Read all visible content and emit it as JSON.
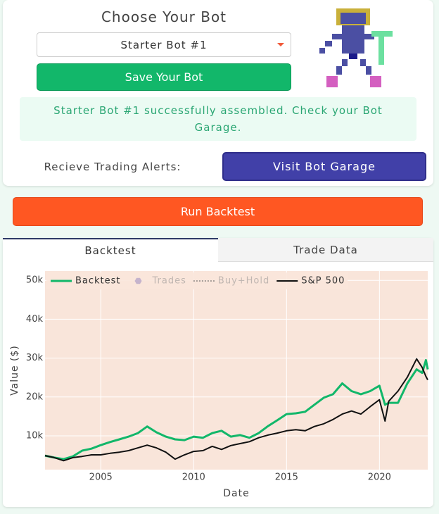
{
  "header": {
    "title": "Choose Your Bot"
  },
  "bot_select": {
    "value": "Starter Bot #1"
  },
  "buttons": {
    "save": "Save Your Bot",
    "garage": "Visit Bot Garage",
    "run": "Run Backtest"
  },
  "message": "Starter Bot #1 successfully assembled. Check your Bot Garage.",
  "alerts_label": "Recieve Trading Alerts:",
  "tabs": [
    "Backtest",
    "Trade Data"
  ],
  "chart_data": {
    "type": "line",
    "xlabel": "Date",
    "ylabel": "Value ($)",
    "xlim": [
      2002,
      2022.6
    ],
    "ylim": [
      1300,
      52400
    ],
    "xticks": [
      2005,
      2010,
      2015,
      2020
    ],
    "yticks": [
      {
        "value": 10000,
        "label": "10k"
      },
      {
        "value": 20000,
        "label": "20k"
      },
      {
        "value": 30000,
        "label": "30k"
      },
      {
        "value": 40000,
        "label": "40k"
      },
      {
        "value": 50000,
        "label": "50k"
      }
    ],
    "grid": true,
    "background": "#f9e5da",
    "legend": "top-left",
    "x": [
      2002.0,
      2002.5,
      2003.0,
      2003.5,
      2004.0,
      2004.5,
      2005.0,
      2005.5,
      2006.0,
      2006.5,
      2007.0,
      2007.5,
      2008.0,
      2008.5,
      2009.0,
      2009.5,
      2010.0,
      2010.5,
      2011.0,
      2011.5,
      2012.0,
      2012.5,
      2013.0,
      2013.5,
      2014.0,
      2014.5,
      2015.0,
      2015.5,
      2016.0,
      2016.5,
      2017.0,
      2017.5,
      2018.0,
      2018.5,
      2019.0,
      2019.5,
      2020.0,
      2020.3,
      2020.5,
      2021.0,
      2021.5,
      2022.0,
      2022.3,
      2022.5,
      2022.6
    ],
    "series": [
      {
        "name": "Backtest",
        "color": "#12b76a",
        "width": 3,
        "visible": true,
        "values": [
          4900,
          4400,
          4000,
          4700,
          6200,
          6700,
          7600,
          8400,
          9100,
          9800,
          10700,
          12400,
          10900,
          9800,
          9100,
          8900,
          9800,
          9500,
          10700,
          11300,
          9800,
          10200,
          9500,
          10700,
          12500,
          14000,
          15600,
          15800,
          16200,
          18000,
          19800,
          20700,
          23500,
          21500,
          20700,
          21500,
          22900,
          18000,
          18500,
          18500,
          23500,
          27100,
          26200,
          29500,
          27100
        ]
      },
      {
        "name": "Trades",
        "color": "#4b3fa8",
        "symbol": "hexagon",
        "visible": false,
        "values": [
          null,
          null,
          null,
          null,
          null,
          null,
          null,
          null,
          null,
          null,
          null,
          null,
          null,
          null,
          null,
          null,
          null,
          null,
          null,
          null,
          null,
          null,
          null,
          null,
          null,
          null,
          null,
          null,
          null,
          null,
          null,
          null,
          null,
          null,
          null,
          null,
          null,
          null,
          null,
          null,
          null,
          null,
          null,
          null,
          null
        ]
      },
      {
        "name": "Buy+Hold",
        "color": "#555555",
        "dash": "dot",
        "visible": false,
        "values": [
          null,
          null,
          null,
          null,
          null,
          null,
          null,
          null,
          null,
          null,
          null,
          null,
          null,
          null,
          null,
          null,
          null,
          null,
          null,
          null,
          null,
          null,
          null,
          null,
          null,
          null,
          null,
          null,
          null,
          null,
          null,
          null,
          null,
          null,
          null,
          null,
          null,
          null,
          null,
          null,
          null,
          null,
          null,
          null,
          null
        ]
      },
      {
        "name": "S&P 500",
        "color": "#111111",
        "width": 2,
        "visible": true,
        "values": [
          4900,
          4400,
          3600,
          4400,
          4700,
          5100,
          5100,
          5500,
          5800,
          6200,
          6900,
          7600,
          6900,
          5800,
          4000,
          5100,
          6000,
          6200,
          7300,
          6500,
          7500,
          8000,
          8500,
          9500,
          10200,
          10700,
          11300,
          11600,
          11300,
          12400,
          13100,
          14200,
          15600,
          16400,
          15600,
          17500,
          19300,
          13800,
          18900,
          21500,
          25100,
          29800,
          27600,
          25300,
          24400
        ]
      }
    ]
  }
}
